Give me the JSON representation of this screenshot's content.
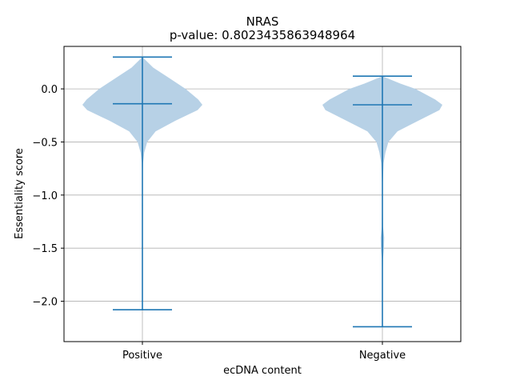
{
  "chart_data": {
    "type": "violin",
    "title": "NRAS",
    "subtitle": "p-value: 0.8023435863948964",
    "xlabel": "ecDNA content",
    "ylabel": "Essentiality score",
    "categories": [
      "Positive",
      "Negative"
    ],
    "ylim": [
      -2.38,
      0.4
    ],
    "yticks": [
      0.0,
      -0.5,
      -1.0,
      -1.5,
      -2.0
    ],
    "ytick_labels": [
      "0.0",
      "−0.5",
      "−1.0",
      "−1.5",
      "−2.0"
    ],
    "grid": true,
    "violins": [
      {
        "category": "Positive",
        "max": 0.3,
        "median": -0.14,
        "min": -2.08,
        "density": [
          [
            0.3,
            0.0
          ],
          [
            0.2,
            0.18
          ],
          [
            0.1,
            0.45
          ],
          [
            0.0,
            0.72
          ],
          [
            -0.1,
            0.93
          ],
          [
            -0.15,
            1.0
          ],
          [
            -0.2,
            0.92
          ],
          [
            -0.3,
            0.55
          ],
          [
            -0.4,
            0.22
          ],
          [
            -0.5,
            0.08
          ],
          [
            -0.6,
            0.03
          ],
          [
            -0.7,
            0.01
          ],
          [
            -0.8,
            0.005
          ],
          [
            -1.0,
            0.004
          ],
          [
            -1.1,
            0.008
          ],
          [
            -1.2,
            0.004
          ],
          [
            -1.4,
            0.002
          ],
          [
            -1.6,
            0.002
          ],
          [
            -1.8,
            0.001
          ],
          [
            -2.0,
            0.001
          ],
          [
            -2.08,
            0.0
          ]
        ]
      },
      {
        "category": "Negative",
        "max": 0.12,
        "median": -0.15,
        "min": -2.24,
        "density": [
          [
            0.12,
            0.0
          ],
          [
            0.05,
            0.3
          ],
          [
            0.0,
            0.55
          ],
          [
            -0.1,
            0.88
          ],
          [
            -0.15,
            1.0
          ],
          [
            -0.2,
            0.95
          ],
          [
            -0.3,
            0.6
          ],
          [
            -0.4,
            0.25
          ],
          [
            -0.5,
            0.1
          ],
          [
            -0.6,
            0.05
          ],
          [
            -0.7,
            0.02
          ],
          [
            -0.9,
            0.006
          ],
          [
            -1.1,
            0.005
          ],
          [
            -1.3,
            0.01
          ],
          [
            -1.4,
            0.03
          ],
          [
            -1.5,
            0.025
          ],
          [
            -1.6,
            0.01
          ],
          [
            -1.8,
            0.003
          ],
          [
            -2.0,
            0.001
          ],
          [
            -2.24,
            0.0
          ]
        ]
      }
    ],
    "colors": {
      "fill": "#b7d1e6",
      "line": "#1f77b4",
      "grid": "#b0b0b0"
    }
  }
}
